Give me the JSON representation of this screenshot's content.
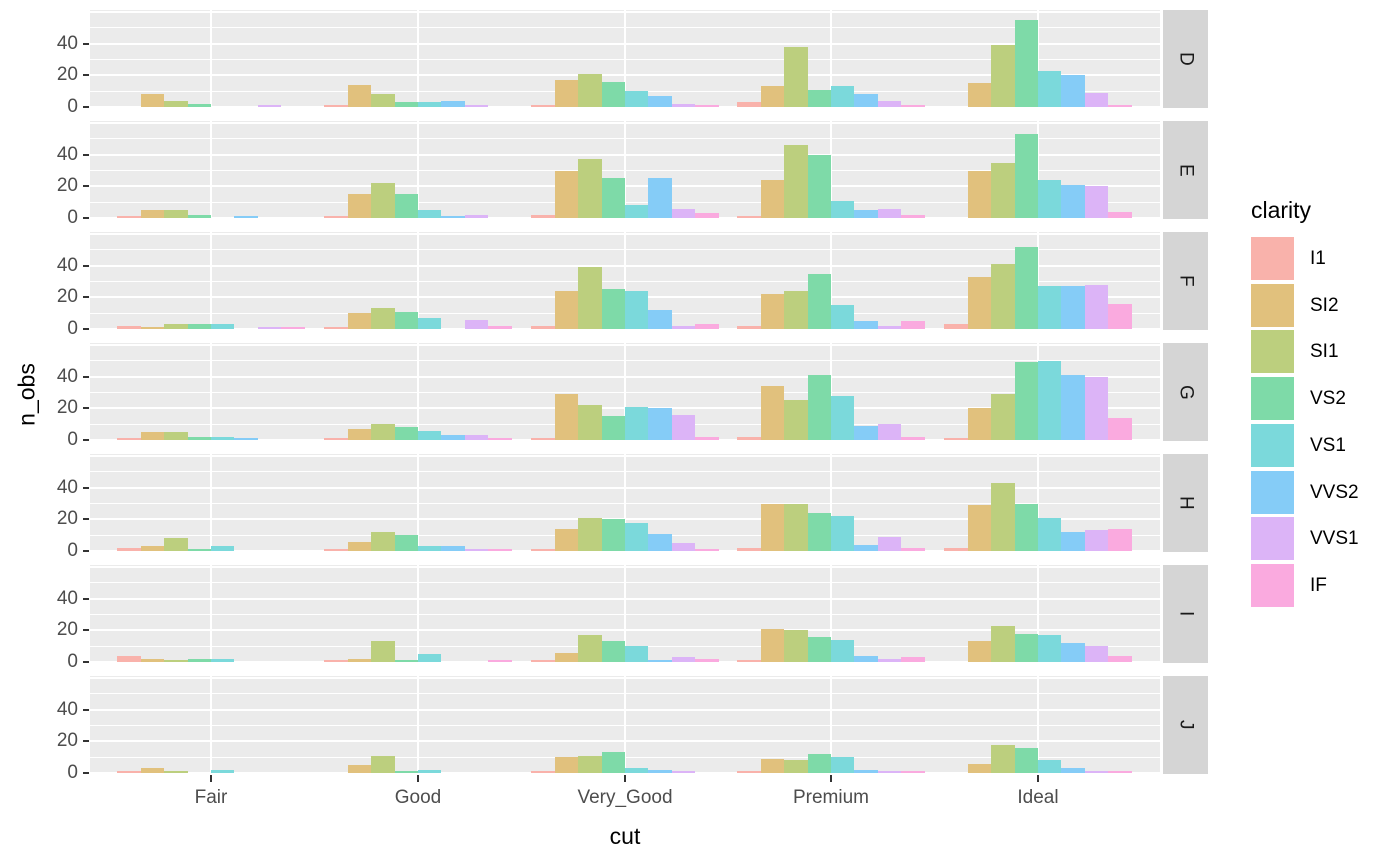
{
  "axes": {
    "x_title": "cut",
    "y_title": "n_obs",
    "x_tick_labels": [
      "Fair",
      "Good",
      "Very_Good",
      "Premium",
      "Ideal"
    ],
    "y_tick_labels": [
      "0",
      "20",
      "40"
    ],
    "y_tick_values": [
      0,
      20,
      40
    ]
  },
  "legend": {
    "title": "clarity",
    "items": [
      {
        "label": "I1",
        "color": "#F9B2AB"
      },
      {
        "label": "SI2",
        "color": "#E1C17D"
      },
      {
        "label": "SI1",
        "color": "#BCCF7E"
      },
      {
        "label": "VS2",
        "color": "#7EDAA8"
      },
      {
        "label": "VS1",
        "color": "#7BD9DB"
      },
      {
        "label": "VVS2",
        "color": "#85CCF7"
      },
      {
        "label": "VVS1",
        "color": "#DCB4F7"
      },
      {
        "label": "IF",
        "color": "#FAAADF"
      }
    ]
  },
  "chart_data": {
    "type": "bar",
    "title": "",
    "xlabel": "cut",
    "ylabel": "n_obs",
    "ylim": [
      0,
      61
    ],
    "grid": true,
    "legend_position": "right",
    "facet_row_variable": "color",
    "categories": [
      "Fair",
      "Good",
      "Very_Good",
      "Premium",
      "Ideal"
    ],
    "series_labels": [
      "I1",
      "SI2",
      "SI1",
      "VS2",
      "VS1",
      "VVS2",
      "VVS1",
      "IF"
    ],
    "facets": [
      {
        "label": "D",
        "values": [
          [
            0,
            8,
            4,
            2,
            0,
            0,
            1,
            0
          ],
          [
            1,
            14,
            8,
            3,
            3,
            4,
            1,
            0
          ],
          [
            1,
            17,
            21,
            16,
            10,
            7,
            2,
            1
          ],
          [
            3,
            13,
            38,
            11,
            13,
            8,
            4,
            1
          ],
          [
            0,
            15,
            39,
            55,
            23,
            20,
            9,
            1
          ]
        ]
      },
      {
        "label": "E",
        "values": [
          [
            1,
            5,
            5,
            2,
            0,
            1,
            0,
            0
          ],
          [
            1,
            15,
            22,
            15,
            5,
            1,
            2,
            0
          ],
          [
            2,
            30,
            37,
            25,
            8,
            25,
            6,
            3
          ],
          [
            1,
            24,
            46,
            40,
            11,
            5,
            6,
            2
          ],
          [
            0,
            30,
            35,
            53,
            24,
            21,
            20,
            4
          ]
        ]
      },
      {
        "label": "F",
        "values": [
          [
            2,
            1,
            3,
            3,
            3,
            0,
            1,
            1
          ],
          [
            1,
            10,
            13,
            11,
            7,
            0,
            6,
            2
          ],
          [
            2,
            24,
            39,
            25,
            24,
            12,
            2,
            3
          ],
          [
            2,
            22,
            24,
            35,
            15,
            5,
            2,
            5
          ],
          [
            3,
            33,
            41,
            52,
            27,
            27,
            28,
            16
          ]
        ]
      },
      {
        "label": "G",
        "values": [
          [
            1,
            5,
            5,
            2,
            2,
            1,
            0,
            0
          ],
          [
            1,
            7,
            10,
            8,
            6,
            3,
            3,
            1
          ],
          [
            1,
            29,
            22,
            15,
            21,
            20,
            16,
            2
          ],
          [
            2,
            34,
            25,
            41,
            28,
            9,
            10,
            2
          ],
          [
            1,
            20,
            29,
            49,
            50,
            41,
            40,
            14
          ]
        ]
      },
      {
        "label": "H",
        "values": [
          [
            2,
            3,
            8,
            1,
            3,
            0,
            0,
            0
          ],
          [
            1,
            6,
            12,
            10,
            3,
            3,
            1,
            1
          ],
          [
            1,
            14,
            21,
            20,
            18,
            11,
            5,
            1
          ],
          [
            2,
            30,
            30,
            24,
            22,
            4,
            9,
            2
          ],
          [
            2,
            29,
            43,
            30,
            21,
            12,
            13,
            14
          ]
        ]
      },
      {
        "label": "I",
        "values": [
          [
            4,
            2,
            1,
            2,
            2,
            0,
            0,
            0
          ],
          [
            1,
            2,
            13,
            1,
            5,
            0,
            0,
            1
          ],
          [
            1,
            6,
            17,
            13,
            10,
            1,
            3,
            2
          ],
          [
            1,
            21,
            20,
            16,
            14,
            4,
            2,
            3
          ],
          [
            0,
            13,
            23,
            18,
            17,
            12,
            10,
            4
          ]
        ]
      },
      {
        "label": "J",
        "values": [
          [
            1,
            3,
            1,
            0,
            2,
            0,
            0,
            0
          ],
          [
            0,
            5,
            11,
            1,
            2,
            0,
            0,
            0
          ],
          [
            1,
            10,
            11,
            13,
            3,
            2,
            1,
            0
          ],
          [
            1,
            9,
            8,
            12,
            10,
            2,
            1,
            1
          ],
          [
            0,
            6,
            18,
            16,
            8,
            3,
            1,
            1
          ]
        ]
      }
    ]
  }
}
